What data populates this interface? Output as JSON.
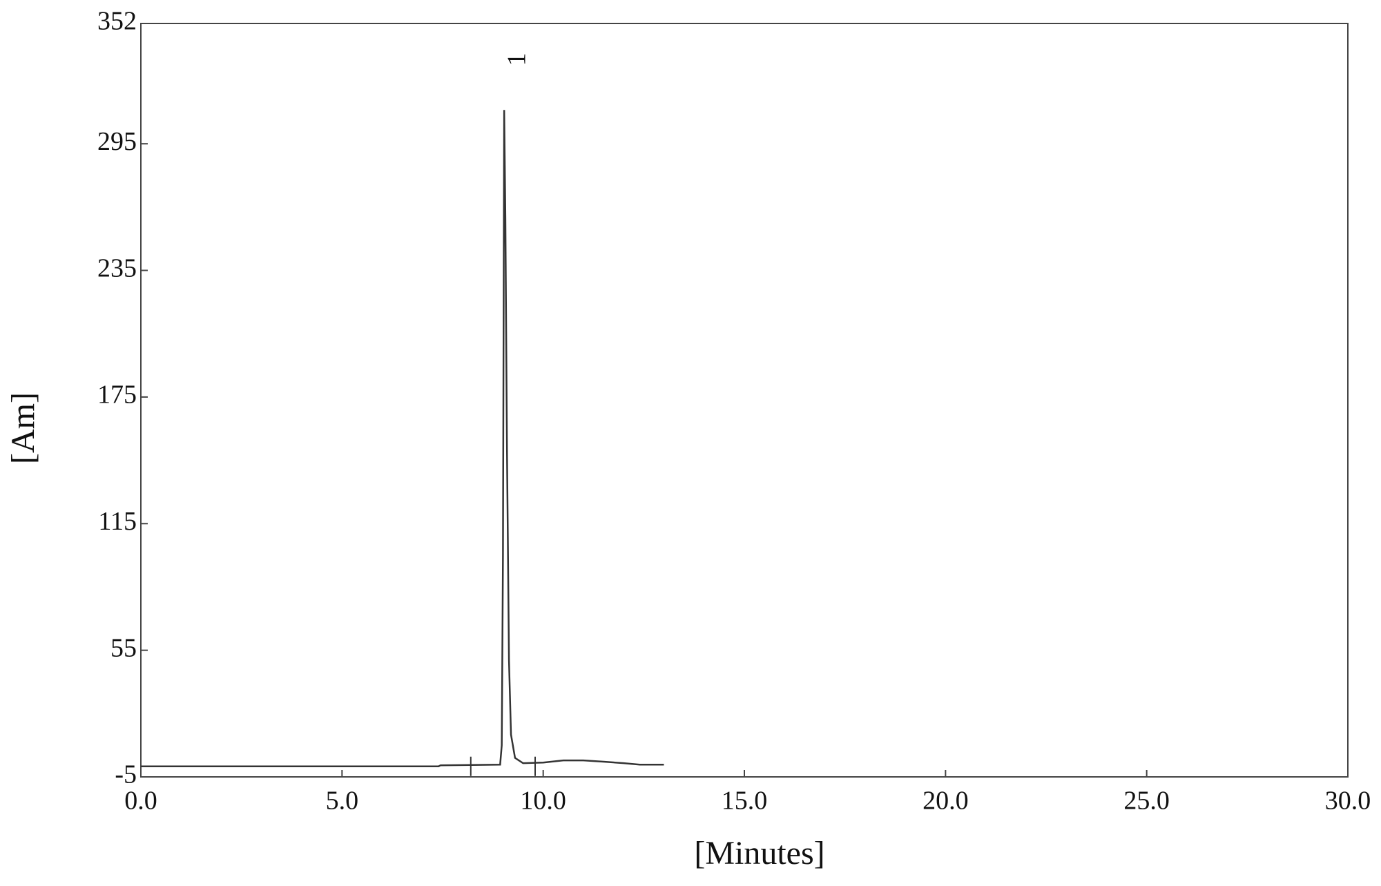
{
  "chart_data": {
    "type": "line",
    "xlabel": "[Minutes]",
    "ylabel": "[Am]",
    "annotations": [
      {
        "text": "1",
        "x": 9.4,
        "y": 335
      }
    ],
    "x": [
      0,
      7.4,
      7.45,
      8.93,
      8.97,
      9.0,
      9.03,
      9.06,
      9.1,
      9.15,
      9.2,
      9.3,
      9.5,
      10.0,
      10.5,
      11.0,
      11.5,
      12.0,
      12.4,
      13.0
    ],
    "series": [
      {
        "color": "#333333",
        "values": [
          0,
          0,
          0.5,
          0.8,
          10,
          100,
          311,
          260,
          150,
          50,
          15,
          4,
          1.5,
          1.8,
          2.8,
          2.8,
          2.2,
          1.5,
          0.8,
          0.8
        ]
      }
    ],
    "events": [
      8.2,
      9.8
    ],
    "xlim": [
      0,
      30
    ],
    "ylim": [
      -5,
      352
    ],
    "xticks": [
      {
        "value": 0,
        "label": "0.0"
      },
      {
        "value": 5,
        "label": "5.0"
      },
      {
        "value": 10,
        "label": "10.0"
      },
      {
        "value": 15,
        "label": "15.0"
      },
      {
        "value": 20,
        "label": "20.0"
      },
      {
        "value": 25,
        "label": "25.0"
      },
      {
        "value": 30,
        "label": "30.0"
      }
    ],
    "yticks": [
      -5,
      55,
      115,
      175,
      235,
      295,
      352
    ],
    "grid": false
  }
}
